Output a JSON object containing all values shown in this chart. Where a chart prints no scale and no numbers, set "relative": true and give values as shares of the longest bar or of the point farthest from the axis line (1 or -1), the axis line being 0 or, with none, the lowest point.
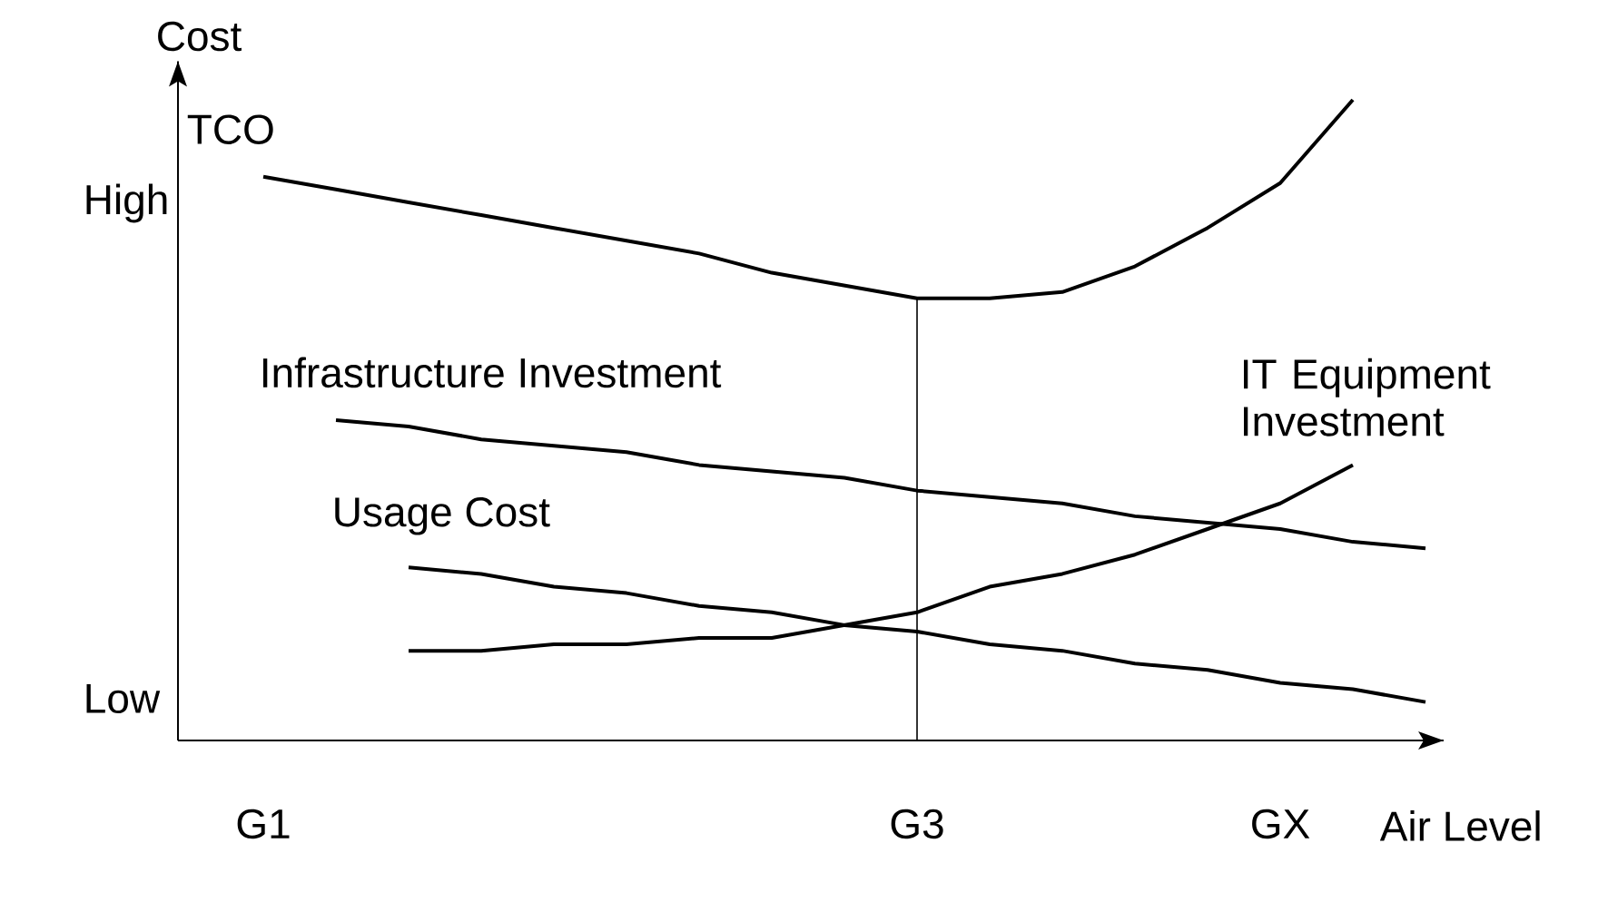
{
  "chart_data": {
    "type": "line",
    "xlabel": "Air Level",
    "ylabel": "Cost",
    "relative": true,
    "categories": [
      "G1",
      null,
      null,
      null,
      null,
      null,
      null,
      null,
      null,
      "G3",
      null,
      null,
      null,
      null,
      "GX",
      null,
      null
    ],
    "annotations": [
      "High",
      "Low"
    ],
    "ref_lines": [
      {
        "axis": "x",
        "value": "G3",
        "color": "#000000"
      }
    ],
    "series": [
      {
        "name": "TCO",
        "color": "#000000",
        "values": [
          0.88,
          0.86,
          0.84,
          0.82,
          0.8,
          0.78,
          0.76,
          0.73,
          0.71,
          0.69,
          0.69,
          0.7,
          0.74,
          0.8,
          0.87,
          1.0,
          null
        ]
      },
      {
        "name": "Infrastructure Investment",
        "color": "#000000",
        "values": [
          null,
          0.5,
          0.49,
          0.47,
          0.46,
          0.45,
          0.43,
          0.42,
          0.41,
          0.39,
          0.38,
          0.37,
          0.35,
          0.34,
          0.33,
          0.31,
          0.3
        ]
      },
      {
        "name": "Usage Cost",
        "color": "#000000",
        "values": [
          null,
          null,
          0.27,
          0.26,
          0.24,
          0.23,
          0.21,
          0.2,
          0.18,
          0.17,
          0.15,
          0.14,
          0.12,
          0.11,
          0.09,
          0.08,
          0.06
        ]
      },
      {
        "name": "IT Equipment Investment",
        "color": "#000000",
        "values": [
          null,
          null,
          0.14,
          0.14,
          0.15,
          0.15,
          0.16,
          0.16,
          0.18,
          0.2,
          0.24,
          0.26,
          0.29,
          0.33,
          0.37,
          0.43,
          null
        ]
      }
    ]
  }
}
